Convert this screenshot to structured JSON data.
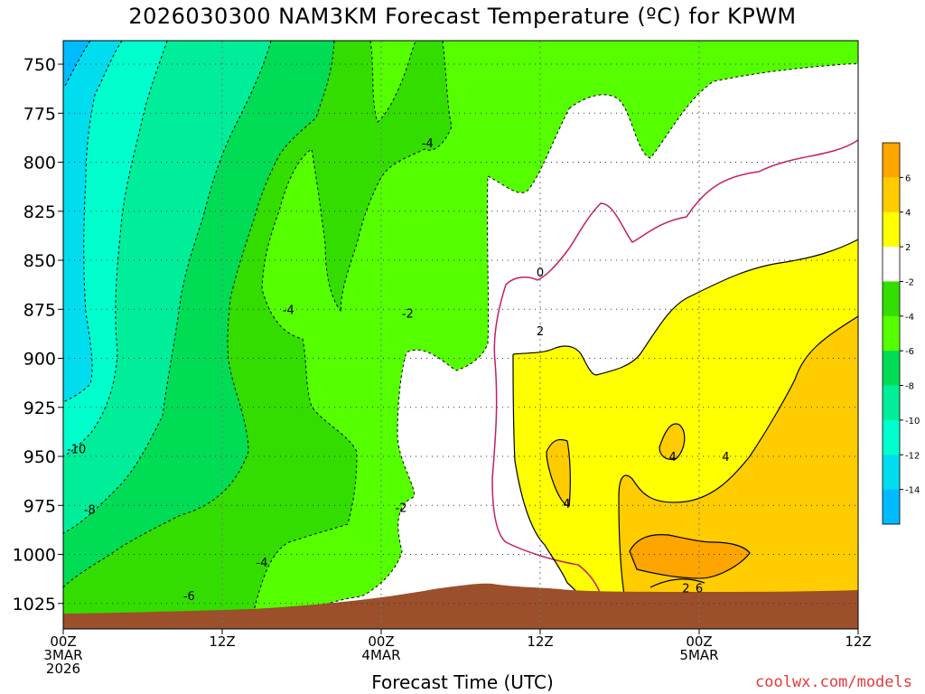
{
  "title": "2026030300 NAM3KM Forecast Temperature (ºC) for KPWM",
  "credit": "coolwx.com/models",
  "chart_data": {
    "type": "time-height contour",
    "title": "2026030300 NAM3KM Forecast Temperature (ºC) for KPWM",
    "xlabel": "Forecast Time (UTC)",
    "ylabel": "",
    "x_ticks": [
      {
        "lines": [
          "00Z",
          "3MAR",
          "2026"
        ],
        "hour": 0
      },
      {
        "lines": [
          "12Z"
        ],
        "hour": 12
      },
      {
        "lines": [
          "00Z",
          "4MAR"
        ],
        "hour": 24
      },
      {
        "lines": [
          "12Z"
        ],
        "hour": 36
      },
      {
        "lines": [
          "00Z",
          "5MAR"
        ],
        "hour": 48
      },
      {
        "lines": [
          "12Z"
        ],
        "hour": 60
      }
    ],
    "xlim": [
      0,
      60
    ],
    "y_ticks": [
      750,
      775,
      800,
      825,
      850,
      875,
      900,
      925,
      950,
      975,
      1000,
      1025
    ],
    "ylim": [
      1038,
      738
    ],
    "grid": true,
    "colorbar": {
      "ticks": [
        "6",
        "4",
        "2",
        "-2",
        "-4",
        "-6",
        "-8",
        "-10",
        "-12",
        "-14"
      ],
      "colors": [
        "#ffa500",
        "#ffcc00",
        "#ffff00",
        "#ffffff",
        "#33dd00",
        "#55ff00",
        "#00dd55",
        "#00ee99",
        "#00ffcc",
        "#00ddee",
        "#00bbff"
      ]
    },
    "contour_labels": [
      {
        "text": "-4",
        "hour": 27.5,
        "p": 790
      },
      {
        "text": "-4",
        "hour": 17.0,
        "p": 875
      },
      {
        "text": "-2",
        "hour": 26.0,
        "p": 877
      },
      {
        "text": "0",
        "hour": 36.0,
        "p": 856
      },
      {
        "text": "2",
        "hour": 36.0,
        "p": 886
      },
      {
        "text": "-10",
        "hour": 1.0,
        "p": 946
      },
      {
        "text": "-8",
        "hour": 2.0,
        "p": 977
      },
      {
        "text": "-2",
        "hour": 25.5,
        "p": 976
      },
      {
        "text": "4",
        "hour": 38.0,
        "p": 974
      },
      {
        "text": "4",
        "hour": 46.0,
        "p": 950
      },
      {
        "text": "4",
        "hour": 50.0,
        "p": 950
      },
      {
        "text": "-4",
        "hour": 15.0,
        "p": 1004
      },
      {
        "text": "-6",
        "hour": 9.5,
        "p": 1021
      },
      {
        "text": "2",
        "hour": 47.0,
        "p": 1017
      },
      {
        "text": "6",
        "hour": 48.0,
        "p": 1017
      }
    ]
  }
}
